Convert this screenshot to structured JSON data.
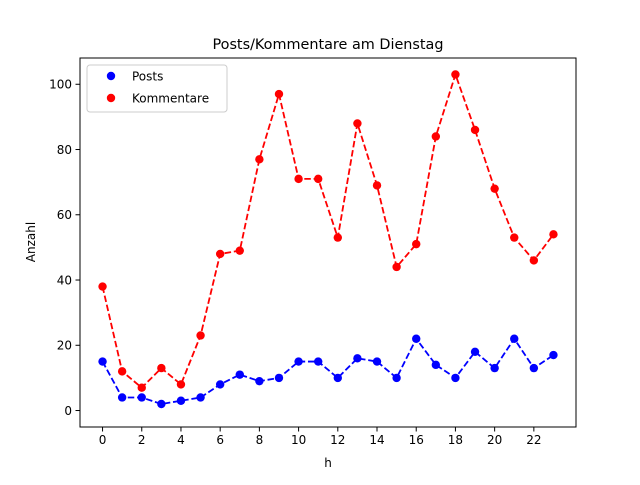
{
  "chart_data": {
    "type": "line",
    "title": "Posts/Kommentare am Dienstag",
    "xlabel": "h",
    "ylabel": "Anzahl",
    "x": [
      0,
      1,
      2,
      3,
      4,
      5,
      6,
      7,
      8,
      9,
      10,
      11,
      12,
      13,
      14,
      15,
      16,
      17,
      18,
      19,
      20,
      21,
      22,
      23
    ],
    "xticks": [
      0,
      2,
      4,
      6,
      8,
      10,
      12,
      14,
      16,
      18,
      20,
      22
    ],
    "yticks": [
      0,
      20,
      40,
      60,
      80,
      100
    ],
    "xlim": [
      -1.15,
      24.15
    ],
    "ylim": [
      -5.05,
      108.05
    ],
    "grid": false,
    "legend_position": "upper-left",
    "series": [
      {
        "name": "Posts",
        "color": "#0000ff",
        "line_style": "dashed",
        "marker": "circle",
        "values": [
          15,
          4,
          4,
          2,
          3,
          4,
          8,
          11,
          9,
          10,
          15,
          15,
          10,
          16,
          15,
          10,
          22,
          14,
          10,
          18,
          13,
          22,
          13,
          17
        ]
      },
      {
        "name": "Kommentare",
        "color": "#ff0000",
        "line_style": "dashed",
        "marker": "circle",
        "values": [
          38,
          12,
          7,
          13,
          8,
          23,
          48,
          49,
          77,
          97,
          71,
          71,
          53,
          88,
          69,
          44,
          51,
          84,
          103,
          86,
          68,
          53,
          46,
          54
        ]
      }
    ]
  }
}
